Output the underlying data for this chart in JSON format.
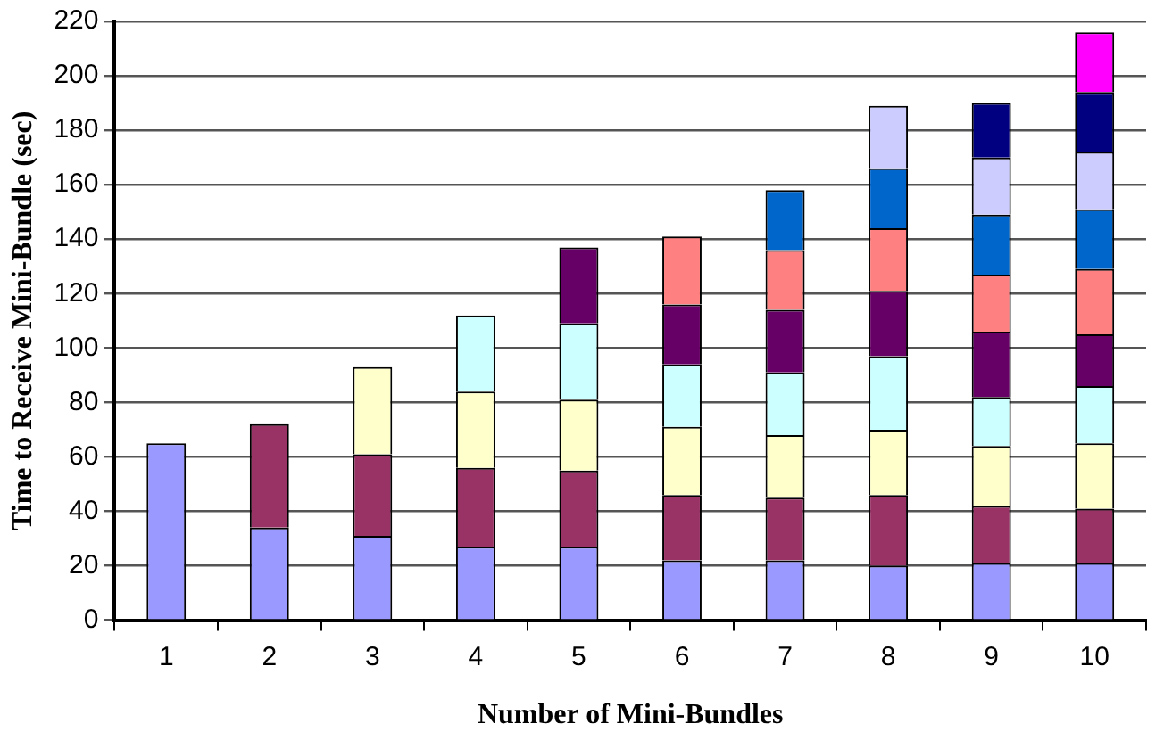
{
  "chart_data": {
    "type": "bar",
    "stacked": true,
    "xlabel": "Number of Mini-Bundles",
    "ylabel": "Time to Receive Mini-Bundle (sec)",
    "categories": [
      "1",
      "2",
      "3",
      "4",
      "5",
      "6",
      "7",
      "8",
      "9",
      "10"
    ],
    "series": [
      {
        "color": "#9999ff",
        "values": [
          65,
          34,
          31,
          27,
          27,
          22,
          22,
          20,
          21,
          21
        ]
      },
      {
        "color": "#993366",
        "values": [
          null,
          38,
          30,
          29,
          28,
          24,
          23,
          26,
          21,
          20
        ]
      },
      {
        "color": "#ffffcc",
        "values": [
          null,
          null,
          32,
          28,
          26,
          25,
          23,
          24,
          22,
          24
        ]
      },
      {
        "color": "#ccffff",
        "values": [
          null,
          null,
          null,
          28,
          28,
          23,
          23,
          27,
          18,
          21
        ]
      },
      {
        "color": "#660066",
        "values": [
          null,
          null,
          null,
          null,
          28,
          22,
          23,
          24,
          24,
          19
        ]
      },
      {
        "color": "#ff8080",
        "values": [
          null,
          null,
          null,
          null,
          null,
          25,
          22,
          23,
          21,
          24
        ]
      },
      {
        "color": "#0066cc",
        "values": [
          null,
          null,
          null,
          null,
          null,
          null,
          22,
          22,
          22,
          22
        ]
      },
      {
        "color": "#ccccff",
        "values": [
          null,
          null,
          null,
          null,
          null,
          null,
          null,
          23,
          21,
          21
        ]
      },
      {
        "color": "#000080",
        "values": [
          null,
          null,
          null,
          null,
          null,
          null,
          null,
          null,
          20,
          22
        ]
      },
      {
        "color": "#ff00ff",
        "values": [
          null,
          null,
          null,
          null,
          null,
          null,
          null,
          null,
          null,
          22
        ]
      }
    ],
    "ylim": [
      0,
      220
    ],
    "yticks": [
      0,
      20,
      40,
      60,
      80,
      100,
      120,
      140,
      160,
      180,
      200,
      220
    ],
    "grid": "y",
    "legend": false
  }
}
